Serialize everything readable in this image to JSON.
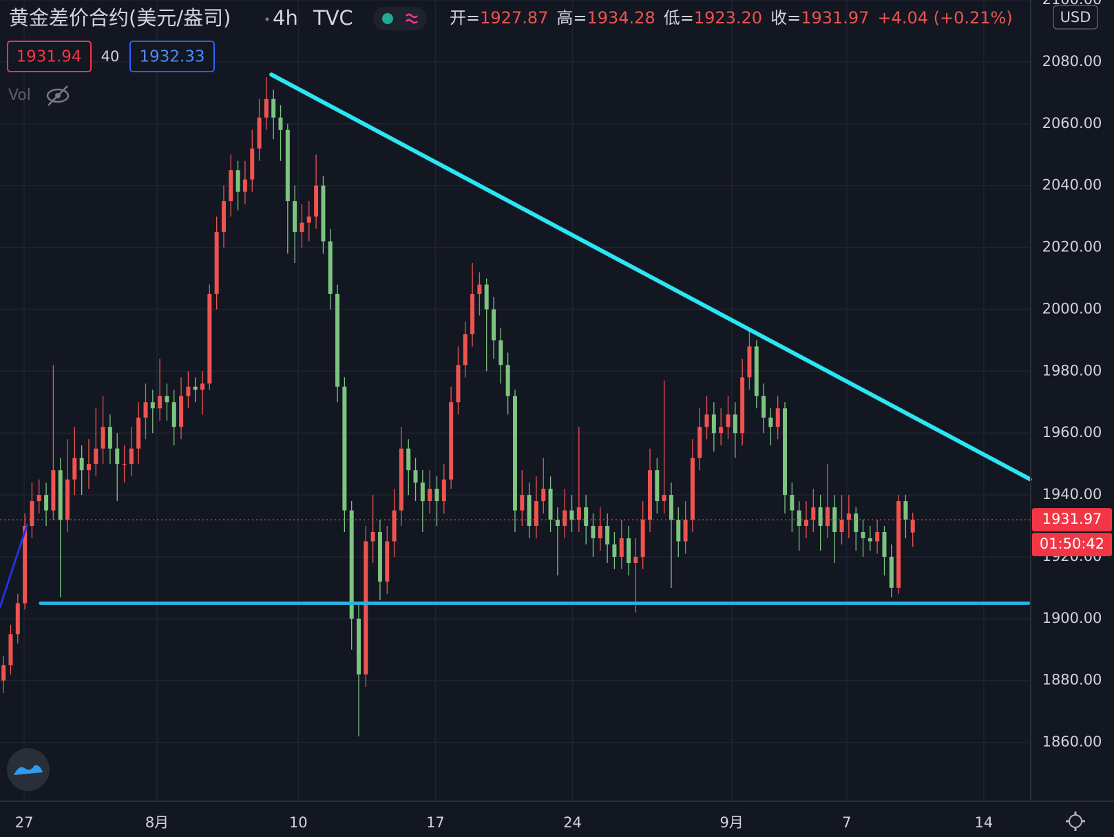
{
  "chart_data": {
    "type": "candlestick",
    "title": "黄金差价合约(美元/盎司)",
    "interval": "4h",
    "source": "TVC",
    "ohlc_labels": [
      "开=",
      "高=",
      "低=",
      "收="
    ],
    "last_candle_labels": [
      "1927.87",
      "1934.28",
      "1923.20",
      "1931.97"
    ],
    "change": "+4.04 (+0.21%)",
    "sell": 1931.94,
    "spread": 40,
    "buy": 1932.33,
    "volume_label": "Vol",
    "currency": "USD",
    "countdown": "01:50:42",
    "up_color": "#ef5350",
    "down_color": "#7cc47f",
    "grid": true,
    "candles": [
      [
        1880,
        1888,
        1876,
        1885
      ],
      [
        1885,
        1898,
        1882,
        1895
      ],
      [
        1895,
        1908,
        1892,
        1905
      ],
      [
        1905,
        1934,
        1903,
        1930
      ],
      [
        1930,
        1944,
        1926,
        1938
      ],
      [
        1938,
        1945,
        1934,
        1940
      ],
      [
        1940,
        1944,
        1930,
        1935
      ],
      [
        1935,
        1982,
        1932,
        1948
      ],
      [
        1948,
        1952,
        1907,
        1932
      ],
      [
        1932,
        1958,
        1928,
        1945
      ],
      [
        1945,
        1962,
        1940,
        1952
      ],
      [
        1952,
        1956,
        1940,
        1948
      ],
      [
        1948,
        1958,
        1942,
        1950
      ],
      [
        1950,
        1968,
        1946,
        1955
      ],
      [
        1955,
        1972,
        1950,
        1962
      ],
      [
        1962,
        1966,
        1950,
        1955
      ],
      [
        1955,
        1960,
        1938,
        1950
      ],
      [
        1950,
        1956,
        1944,
        1950
      ],
      [
        1950,
        1962,
        1946,
        1955
      ],
      [
        1955,
        1970,
        1950,
        1965
      ],
      [
        1965,
        1976,
        1958,
        1970
      ],
      [
        1970,
        1974,
        1960,
        1968
      ],
      [
        1968,
        1984,
        1964,
        1972
      ],
      [
        1972,
        1976,
        1964,
        1970
      ],
      [
        1970,
        1974,
        1956,
        1962
      ],
      [
        1962,
        1978,
        1958,
        1972
      ],
      [
        1972,
        1980,
        1968,
        1975
      ],
      [
        1975,
        1978,
        1970,
        1974
      ],
      [
        1974,
        1980,
        1966,
        1976
      ],
      [
        1976,
        2008,
        1974,
        2005
      ],
      [
        2005,
        2030,
        2000,
        2025
      ],
      [
        2025,
        2040,
        2020,
        2035
      ],
      [
        2035,
        2050,
        2030,
        2045
      ],
      [
        2045,
        2048,
        2032,
        2038
      ],
      [
        2038,
        2048,
        2034,
        2042
      ],
      [
        2042,
        2058,
        2038,
        2052
      ],
      [
        2052,
        2068,
        2048,
        2062
      ],
      [
        2062,
        2075,
        2058,
        2068
      ],
      [
        2068,
        2071,
        2055,
        2062
      ],
      [
        2062,
        2066,
        2048,
        2058
      ],
      [
        2058,
        2060,
        2018,
        2035
      ],
      [
        2035,
        2040,
        2015,
        2025
      ],
      [
        2025,
        2034,
        2020,
        2028
      ],
      [
        2028,
        2035,
        2022,
        2030
      ],
      [
        2030,
        2050,
        2026,
        2040
      ],
      [
        2040,
        2043,
        2018,
        2022
      ],
      [
        2022,
        2026,
        2000,
        2005
      ],
      [
        2005,
        2008,
        1970,
        1975
      ],
      [
        1975,
        1978,
        1928,
        1935
      ],
      [
        1935,
        1938,
        1890,
        1900
      ],
      [
        1900,
        1905,
        1862,
        1882
      ],
      [
        1882,
        1930,
        1878,
        1925
      ],
      [
        1925,
        1940,
        1918,
        1928
      ],
      [
        1928,
        1932,
        1906,
        1912
      ],
      [
        1912,
        1930,
        1908,
        1925
      ],
      [
        1925,
        1942,
        1920,
        1935
      ],
      [
        1935,
        1962,
        1930,
        1955
      ],
      [
        1955,
        1958,
        1940,
        1948
      ],
      [
        1948,
        1952,
        1938,
        1944
      ],
      [
        1944,
        1948,
        1928,
        1938
      ],
      [
        1938,
        1948,
        1934,
        1942
      ],
      [
        1942,
        1946,
        1930,
        1938
      ],
      [
        1938,
        1950,
        1934,
        1945
      ],
      [
        1945,
        1975,
        1942,
        1970
      ],
      [
        1970,
        1988,
        1966,
        1982
      ],
      [
        1982,
        1996,
        1978,
        1992
      ],
      [
        1992,
        2015,
        1988,
        2005
      ],
      [
        2005,
        2012,
        1998,
        2008
      ],
      [
        2008,
        2010,
        1980,
        2000
      ],
      [
        2000,
        2004,
        1984,
        1990
      ],
      [
        1990,
        1994,
        1976,
        1982
      ],
      [
        1982,
        1986,
        1966,
        1972
      ],
      [
        1972,
        1974,
        1928,
        1935
      ],
      [
        1935,
        1948,
        1930,
        1940
      ],
      [
        1940,
        1944,
        1926,
        1930
      ],
      [
        1930,
        1946,
        1926,
        1938
      ],
      [
        1938,
        1952,
        1934,
        1942
      ],
      [
        1942,
        1946,
        1928,
        1932
      ],
      [
        1932,
        1936,
        1914,
        1930
      ],
      [
        1930,
        1942,
        1926,
        1935
      ],
      [
        1935,
        1940,
        1928,
        1932
      ],
      [
        1932,
        1962,
        1928,
        1936
      ],
      [
        1936,
        1940,
        1924,
        1930
      ],
      [
        1930,
        1934,
        1920,
        1926
      ],
      [
        1926,
        1936,
        1922,
        1930
      ],
      [
        1930,
        1934,
        1918,
        1924
      ],
      [
        1924,
        1928,
        1916,
        1920
      ],
      [
        1920,
        1932,
        1916,
        1926
      ],
      [
        1926,
        1930,
        1914,
        1918
      ],
      [
        1918,
        1926,
        1902,
        1920
      ],
      [
        1920,
        1938,
        1916,
        1932
      ],
      [
        1932,
        1955,
        1928,
        1948
      ],
      [
        1948,
        1952,
        1934,
        1938
      ],
      [
        1938,
        1977,
        1934,
        1940
      ],
      [
        1940,
        1944,
        1910,
        1932
      ],
      [
        1932,
        1936,
        1920,
        1925
      ],
      [
        1925,
        1938,
        1921,
        1932
      ],
      [
        1932,
        1958,
        1928,
        1952
      ],
      [
        1952,
        1968,
        1948,
        1962
      ],
      [
        1962,
        1972,
        1958,
        1966
      ],
      [
        1966,
        1970,
        1954,
        1960
      ],
      [
        1960,
        1968,
        1956,
        1962
      ],
      [
        1962,
        1972,
        1958,
        1966
      ],
      [
        1966,
        1970,
        1952,
        1960
      ],
      [
        1960,
        1984,
        1956,
        1978
      ],
      [
        1978,
        1993,
        1974,
        1988
      ],
      [
        1988,
        1990,
        1968,
        1972
      ],
      [
        1972,
        1976,
        1960,
        1965
      ],
      [
        1965,
        1968,
        1956,
        1962
      ],
      [
        1962,
        1972,
        1958,
        1968
      ],
      [
        1968,
        1970,
        1934,
        1940
      ],
      [
        1940,
        1944,
        1928,
        1935
      ],
      [
        1935,
        1938,
        1922,
        1930
      ],
      [
        1930,
        1938,
        1926,
        1932
      ],
      [
        1932,
        1942,
        1928,
        1936
      ],
      [
        1936,
        1940,
        1922,
        1930
      ],
      [
        1930,
        1950,
        1926,
        1936
      ],
      [
        1936,
        1940,
        1918,
        1928
      ],
      [
        1928,
        1940,
        1924,
        1932
      ],
      [
        1932,
        1940,
        1926,
        1934
      ],
      [
        1934,
        1936,
        1922,
        1928
      ],
      [
        1928,
        1932,
        1920,
        1926
      ],
      [
        1926,
        1930,
        1922,
        1925
      ],
      [
        1925,
        1932,
        1921,
        1928
      ],
      [
        1928,
        1930,
        1914,
        1920
      ],
      [
        1920,
        1924,
        1907,
        1910
      ],
      [
        1910,
        1940,
        1908,
        1938
      ],
      [
        1938,
        1940,
        1926,
        1932
      ],
      [
        1927.87,
        1934.28,
        1923.2,
        1931.97
      ]
    ],
    "xlim": [
      -0.5,
      144.6
    ],
    "xticks": [
      {
        "value": 2.9,
        "label": "27"
      },
      {
        "value": 21.6,
        "label": "8月"
      },
      {
        "value": 41.5,
        "label": "10"
      },
      {
        "value": 60.8,
        "label": "17"
      },
      {
        "value": 80.1,
        "label": "24"
      },
      {
        "value": 102.5,
        "label": "9月"
      },
      {
        "value": 118.7,
        "label": "7"
      },
      {
        "value": 138,
        "label": "14"
      }
    ],
    "ylim": [
      1841,
      2100
    ],
    "yticks": [
      {
        "value": 1860,
        "label": "1860.00"
      },
      {
        "value": 1880,
        "label": "1880.00"
      },
      {
        "value": 1900,
        "label": "1900.00"
      },
      {
        "value": 1920,
        "label": "1920.00"
      },
      {
        "value": 1940,
        "label": "1940.00"
      },
      {
        "value": 1960,
        "label": "1960.00"
      },
      {
        "value": 1980,
        "label": "1980.00"
      },
      {
        "value": 2000,
        "label": "2000.00"
      },
      {
        "value": 2020,
        "label": "2020.00"
      },
      {
        "value": 2040,
        "label": "2040.00"
      },
      {
        "value": 2060,
        "label": "2060.00"
      },
      {
        "value": 2080,
        "label": "2080.00"
      },
      {
        "value": 2100,
        "label": "2100.00"
      }
    ],
    "trendlines": [
      {
        "color": "#2ae6f2",
        "points": [
          [
            37.7,
            2075.9
          ],
          [
            144.5,
            1945.1
          ]
        ]
      },
      {
        "color": "#29b3e3",
        "points": [
          [
            5.2,
            1905.0
          ],
          [
            144.3,
            1905.0
          ]
        ]
      },
      {
        "color": "#2233e0",
        "points": [
          [
            -0.5,
            1903.8
          ],
          [
            3.3,
            1930.2
          ]
        ]
      }
    ]
  }
}
